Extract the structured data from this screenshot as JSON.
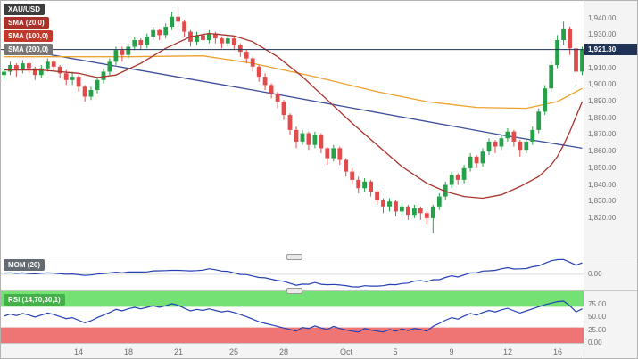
{
  "legend": {
    "symbol": "XAU/USD",
    "sma20": "SMA (20,0)",
    "sma100": "SMA (100,0)",
    "sma200": "SMA (200,0)",
    "mom": "MOM (20)",
    "rsi": "RSI (14,70,30,1)"
  },
  "colors": {
    "up": "#27a149",
    "down": "#e14b4b",
    "sma20": "#a8322a",
    "sma100": "#efa12d",
    "sma200": "#3c4e9c",
    "indicator_line": "#2440b3",
    "price_line": "#1e3356",
    "badge_bg": "#1e3356",
    "badge_text": "#ffffff",
    "rsi_upper_band": "#74e174",
    "rsi_lower_band": "#ef7474",
    "pill_symbol_bg": "#3d3d3d",
    "pill_sma20_bg": "#a8322a",
    "pill_sma100_bg": "#c0392b",
    "pill_sma200_bg": "#767676",
    "pill_mom_bg": "#646b72",
    "pill_rsi_bg": "#43b049",
    "axis_text": "#6e6e6e"
  },
  "chart_data": {
    "type": "candlestick",
    "symbol": "XAU/USD",
    "last_price": 1921.3,
    "last_price_label": "1,921.30",
    "legend_position": "top-left",
    "main": {
      "ylim": [
        1798,
        1950
      ],
      "yticks": [
        {
          "v": 1940,
          "t": "1,940.00"
        },
        {
          "v": 1930,
          "t": "1,930.00"
        },
        {
          "v": 1920,
          "t": "1,920.00"
        },
        {
          "v": 1910,
          "t": "1,910.00"
        },
        {
          "v": 1900,
          "t": "1,900.00"
        },
        {
          "v": 1890,
          "t": "1,890.00"
        },
        {
          "v": 1880,
          "t": "1,880.00"
        },
        {
          "v": 1870,
          "t": "1,870.00"
        },
        {
          "v": 1860,
          "t": "1,860.00"
        },
        {
          "v": 1850,
          "t": "1,850.00"
        },
        {
          "v": 1840,
          "t": "1,840.00"
        },
        {
          "v": 1830,
          "t": "1,830.00"
        },
        {
          "v": 1820,
          "t": "1,820.00"
        }
      ],
      "candles": [
        [
          1906,
          1910,
          1903,
          1908
        ],
        [
          1908,
          1914,
          1906,
          1912
        ],
        [
          1912,
          1913,
          1905,
          1909
        ],
        [
          1909,
          1915,
          1907,
          1913
        ],
        [
          1913,
          1914,
          1907,
          1910
        ],
        [
          1910,
          1911,
          1903,
          1906
        ],
        [
          1906,
          1912,
          1904,
          1910
        ],
        [
          1910,
          1916,
          1908,
          1914
        ],
        [
          1914,
          1915,
          1908,
          1911
        ],
        [
          1911,
          1912,
          1904,
          1907
        ],
        [
          1907,
          1909,
          1900,
          1903
        ],
        [
          1903,
          1908,
          1900,
          1905
        ],
        [
          1905,
          1906,
          1896,
          1899
        ],
        [
          1899,
          1900,
          1890,
          1893
        ],
        [
          1893,
          1899,
          1891,
          1897
        ],
        [
          1897,
          1905,
          1895,
          1903
        ],
        [
          1903,
          1910,
          1901,
          1908
        ],
        [
          1908,
          1916,
          1906,
          1914
        ],
        [
          1914,
          1923,
          1912,
          1921
        ],
        [
          1921,
          1923,
          1914,
          1918
        ],
        [
          1918,
          1925,
          1916,
          1923
        ],
        [
          1923,
          1929,
          1921,
          1927
        ],
        [
          1927,
          1928,
          1921,
          1924
        ],
        [
          1924,
          1931,
          1922,
          1929
        ],
        [
          1929,
          1935,
          1927,
          1933
        ],
        [
          1933,
          1934,
          1927,
          1930
        ],
        [
          1930,
          1937,
          1928,
          1935
        ],
        [
          1935,
          1944,
          1933,
          1941
        ],
        [
          1941,
          1947,
          1935,
          1938
        ],
        [
          1938,
          1939,
          1929,
          1932
        ],
        [
          1932,
          1933,
          1923,
          1926
        ],
        [
          1926,
          1932,
          1924,
          1930
        ],
        [
          1930,
          1931,
          1924,
          1927
        ],
        [
          1927,
          1933,
          1925,
          1931
        ],
        [
          1931,
          1932,
          1925,
          1928
        ],
        [
          1928,
          1929,
          1922,
          1925
        ],
        [
          1925,
          1930,
          1923,
          1928
        ],
        [
          1928,
          1929,
          1921,
          1924
        ],
        [
          1924,
          1925,
          1917,
          1920
        ],
        [
          1920,
          1921,
          1913,
          1916
        ],
        [
          1916,
          1917,
          1908,
          1911
        ],
        [
          1911,
          1912,
          1902,
          1905
        ],
        [
          1905,
          1907,
          1897,
          1900
        ],
        [
          1900,
          1901,
          1892,
          1895
        ],
        [
          1895,
          1896,
          1886,
          1890
        ],
        [
          1890,
          1891,
          1879,
          1882
        ],
        [
          1882,
          1883,
          1870,
          1873
        ],
        [
          1873,
          1875,
          1862,
          1866
        ],
        [
          1866,
          1873,
          1864,
          1871
        ],
        [
          1871,
          1872,
          1861,
          1864
        ],
        [
          1864,
          1872,
          1862,
          1870
        ],
        [
          1870,
          1871,
          1859,
          1862
        ],
        [
          1862,
          1863,
          1852,
          1856
        ],
        [
          1856,
          1864,
          1854,
          1862
        ],
        [
          1862,
          1863,
          1852,
          1855
        ],
        [
          1855,
          1856,
          1845,
          1848
        ],
        [
          1848,
          1850,
          1840,
          1843
        ],
        [
          1843,
          1845,
          1835,
          1838
        ],
        [
          1838,
          1844,
          1836,
          1842
        ],
        [
          1842,
          1843,
          1833,
          1836
        ],
        [
          1836,
          1837,
          1828,
          1831
        ],
        [
          1831,
          1832,
          1823,
          1827
        ],
        [
          1827,
          1832,
          1824,
          1830
        ],
        [
          1830,
          1831,
          1821,
          1824
        ],
        [
          1824,
          1829,
          1822,
          1827
        ],
        [
          1827,
          1828,
          1819,
          1822
        ],
        [
          1822,
          1828,
          1820,
          1826
        ],
        [
          1826,
          1827,
          1819,
          1823
        ],
        [
          1823,
          1824,
          1816,
          1820
        ],
        [
          1820,
          1828,
          1811,
          1827
        ],
        [
          1827,
          1835,
          1825,
          1833
        ],
        [
          1833,
          1842,
          1831,
          1840
        ],
        [
          1840,
          1848,
          1838,
          1846
        ],
        [
          1846,
          1847,
          1840,
          1843
        ],
        [
          1843,
          1852,
          1841,
          1850
        ],
        [
          1850,
          1859,
          1848,
          1857
        ],
        [
          1857,
          1858,
          1850,
          1853
        ],
        [
          1853,
          1862,
          1851,
          1860
        ],
        [
          1860,
          1868,
          1858,
          1866
        ],
        [
          1866,
          1867,
          1859,
          1863
        ],
        [
          1863,
          1870,
          1861,
          1868
        ],
        [
          1868,
          1874,
          1866,
          1872
        ],
        [
          1872,
          1873,
          1863,
          1866
        ],
        [
          1866,
          1867,
          1857,
          1861
        ],
        [
          1861,
          1868,
          1859,
          1866
        ],
        [
          1866,
          1875,
          1864,
          1873
        ],
        [
          1873,
          1886,
          1871,
          1884
        ],
        [
          1884,
          1900,
          1882,
          1898
        ],
        [
          1898,
          1914,
          1896,
          1912
        ],
        [
          1912,
          1930,
          1910,
          1927
        ],
        [
          1927,
          1938,
          1924,
          1934
        ],
        [
          1934,
          1935,
          1918,
          1922
        ],
        [
          1922,
          1923,
          1903,
          1908
        ],
        [
          1908,
          1923,
          1906,
          1921.3
        ]
      ],
      "sma20_points": [
        [
          0,
          1909
        ],
        [
          6,
          1909
        ],
        [
          12,
          1907
        ],
        [
          15,
          1904.5
        ],
        [
          18,
          1906
        ],
        [
          22,
          1913
        ],
        [
          26,
          1922
        ],
        [
          30,
          1929
        ],
        [
          33,
          1931
        ],
        [
          37,
          1929.5
        ],
        [
          40,
          1926
        ],
        [
          44,
          1917
        ],
        [
          48,
          1905
        ],
        [
          52,
          1891
        ],
        [
          56,
          1877
        ],
        [
          60,
          1864
        ],
        [
          64,
          1851
        ],
        [
          68,
          1841
        ],
        [
          71,
          1836
        ],
        [
          74,
          1833
        ],
        [
          77,
          1832
        ],
        [
          80,
          1834
        ],
        [
          83,
          1839
        ],
        [
          86,
          1845
        ],
        [
          88,
          1852
        ],
        [
          89,
          1857
        ],
        [
          90,
          1864
        ],
        [
          91,
          1872
        ],
        [
          92,
          1881
        ],
        [
          93,
          1890
        ]
      ],
      "sma100_points": [
        [
          0,
          1917
        ],
        [
          20,
          1917
        ],
        [
          32,
          1917.5
        ],
        [
          40,
          1913
        ],
        [
          50,
          1905
        ],
        [
          60,
          1896
        ],
        [
          68,
          1890
        ],
        [
          76,
          1886.5
        ],
        [
          84,
          1886
        ],
        [
          89,
          1890
        ],
        [
          93,
          1898
        ]
      ],
      "sma200_points": [
        [
          0,
          1923
        ],
        [
          20,
          1910
        ],
        [
          40,
          1897
        ],
        [
          60,
          1883.5
        ],
        [
          80,
          1870
        ],
        [
          93,
          1862
        ]
      ]
    },
    "mom": {
      "label": "MOM (20)",
      "ylim": [
        -110,
        115
      ],
      "yticks": [
        {
          "v": 0,
          "t": "0.00"
        }
      ],
      "values": [
        8,
        10,
        6,
        9,
        5,
        3,
        7,
        10,
        8,
        4,
        0,
        2,
        -3,
        -8,
        -5,
        1,
        5,
        9,
        14,
        10,
        15,
        15,
        15,
        16,
        23,
        24,
        25,
        27,
        27,
        25,
        23,
        25,
        28,
        38,
        31,
        22,
        20,
        10,
        -1,
        -2,
        -12,
        -22,
        -24,
        -34,
        -43,
        -48,
        -62,
        -75,
        -67,
        -68,
        -56,
        -68,
        -71,
        -69,
        -73,
        -77,
        -85,
        -86,
        -78,
        -80,
        -80,
        -78,
        -70,
        -71,
        -63,
        -60,
        -47,
        -43,
        -51,
        -37,
        -37,
        -22,
        -10,
        -19,
        -5,
        9,
        10,
        22,
        24,
        27,
        37,
        45,
        36,
        37,
        39,
        51,
        58,
        75,
        92,
        100,
        101,
        82,
        62,
        78
      ]
    },
    "rsi": {
      "label": "RSI (14,70,30,1)",
      "ylim": [
        0,
        100
      ],
      "overbought": 70,
      "oversold": 30,
      "yticks": [
        {
          "v": 75,
          "t": "75.00"
        },
        {
          "v": 50,
          "t": "50.00"
        },
        {
          "v": 25,
          "t": "25.00"
        },
        {
          "v": 0,
          "t": "0.00"
        }
      ],
      "values": [
        52,
        56,
        53,
        57,
        54,
        50,
        54,
        58,
        55,
        51,
        47,
        49,
        44,
        39,
        43,
        49,
        54,
        59,
        65,
        62,
        66,
        69,
        66,
        69,
        72,
        69,
        72,
        76,
        73,
        67,
        62,
        65,
        63,
        66,
        63,
        60,
        62,
        59,
        55,
        51,
        46,
        41,
        38,
        35,
        32,
        29,
        26,
        23,
        30,
        28,
        33,
        29,
        26,
        32,
        28,
        25,
        23,
        21,
        28,
        25,
        23,
        21,
        26,
        23,
        27,
        24,
        28,
        26,
        23,
        32,
        38,
        44,
        49,
        46,
        52,
        57,
        54,
        59,
        63,
        60,
        64,
        67,
        62,
        58,
        62,
        66,
        70,
        74,
        77,
        80,
        81,
        72,
        60,
        66
      ]
    },
    "xticks": [
      {
        "i": 12,
        "t": "14"
      },
      {
        "i": 20,
        "t": "18"
      },
      {
        "i": 28,
        "t": "21"
      },
      {
        "i": 37,
        "t": "25"
      },
      {
        "i": 45,
        "t": "28"
      },
      {
        "i": 55,
        "t": "Oct"
      },
      {
        "i": 63,
        "t": "5"
      },
      {
        "i": 72,
        "t": "9"
      },
      {
        "i": 81,
        "t": "12"
      },
      {
        "i": 89,
        "t": "16"
      }
    ]
  }
}
